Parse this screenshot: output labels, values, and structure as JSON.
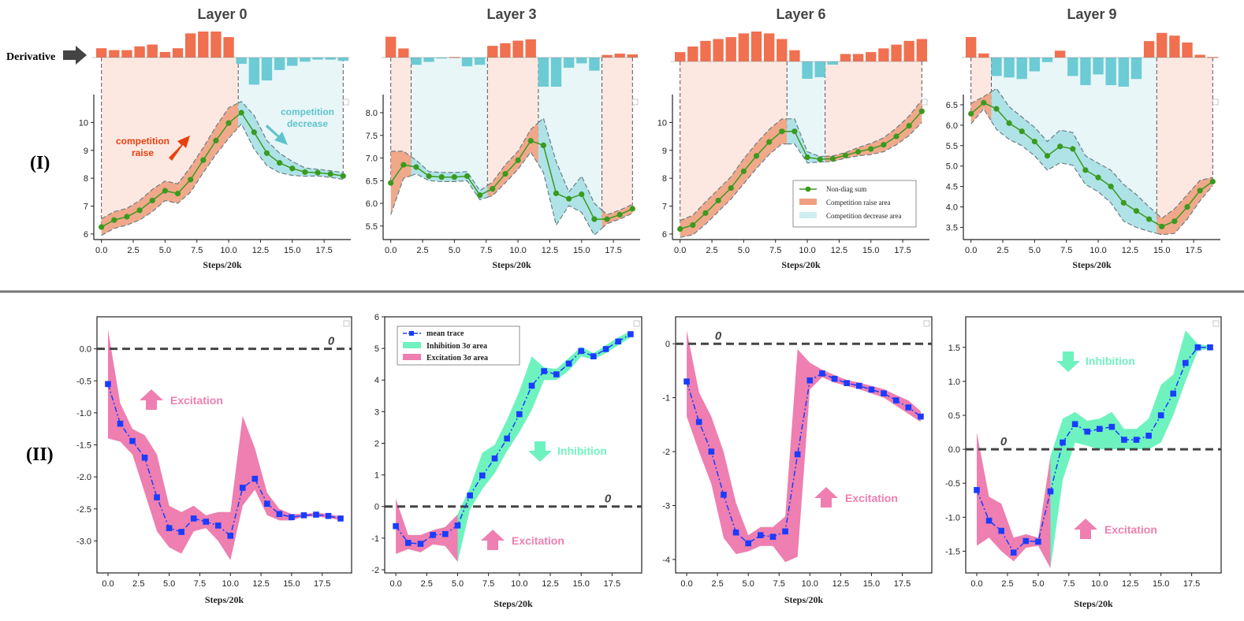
{
  "figure": {
    "row_labels": [
      "(I)",
      "(II)"
    ],
    "derivative_label": "Derivative",
    "colors": {
      "orange": "#f07050",
      "cyan": "#6ccbd4",
      "raise_fill": "#fde8e1",
      "decrease_fill": "#e8f6f8",
      "raise_band": "#f0a080",
      "decrease_band": "#a6e0e4",
      "green": "#3a9a1e",
      "blue": "#1a3cff",
      "pink": "#ee7fb0",
      "mint": "#6ef3bf",
      "dashed": "#444444"
    }
  },
  "chart_data": [
    {
      "type": "line",
      "title": "Layer 0",
      "xlabel": "Steps/20k",
      "xticks": [
        "0.0",
        "2.5",
        "5.0",
        "7.5",
        "10.0",
        "12.5",
        "15.0",
        "17.5"
      ],
      "xlim": [
        -0.6,
        19.6
      ],
      "ylim": [
        5.8,
        11.0
      ],
      "yticks": [
        "6",
        "7",
        "8",
        "9",
        "10"
      ],
      "x": [
        0,
        1,
        2,
        3,
        4,
        5,
        6,
        7,
        8,
        9,
        10,
        11,
        12,
        13,
        14,
        15,
        16,
        17,
        18,
        19
      ],
      "series": [
        {
          "name": "Non-diag sum",
          "values": [
            6.25,
            6.5,
            6.62,
            6.85,
            7.2,
            7.55,
            7.45,
            7.95,
            8.65,
            9.35,
            9.98,
            10.35,
            9.65,
            8.9,
            8.55,
            8.35,
            8.22,
            8.2,
            8.15,
            8.08
          ]
        }
      ],
      "band_halfwidth": [
        0.3,
        0.3,
        0.3,
        0.35,
        0.4,
        0.35,
        0.35,
        0.45,
        0.45,
        0.5,
        0.55,
        0.4,
        0.6,
        0.45,
        0.35,
        0.25,
        0.15,
        0.12,
        0.12,
        0.12
      ],
      "segments": [
        {
          "kind": "raise",
          "from": 0,
          "to": 10.75
        },
        {
          "kind": "decrease",
          "from": 10.75,
          "to": 19
        }
      ],
      "derivative": [
        0.25,
        0.2,
        0.2,
        0.3,
        0.35,
        0.15,
        0.25,
        0.65,
        0.7,
        0.7,
        0.55,
        -0.15,
        -0.65,
        -0.55,
        -0.3,
        -0.2,
        -0.1,
        -0.05,
        -0.05,
        -0.08
      ],
      "annotations": [
        {
          "text": "competition\nraise",
          "color": "#e8400e"
        },
        {
          "text": "competition\ndecrease",
          "color": "#5fc3cc"
        }
      ]
    },
    {
      "type": "line",
      "title": "Layer 3",
      "xlabel": "Steps/20k",
      "xticks": [
        "0.0",
        "2.5",
        "5.0",
        "7.5",
        "10.0",
        "12.5",
        "15.0",
        "17.5"
      ],
      "xlim": [
        -0.6,
        19.6
      ],
      "ylim": [
        5.2,
        8.4
      ],
      "yticks": [
        "5.5",
        "6.0",
        "6.5",
        "7.0",
        "7.5",
        "8.0"
      ],
      "x": [
        0,
        1,
        2,
        3,
        4,
        5,
        6,
        7,
        8,
        9,
        10,
        11,
        12,
        13,
        14,
        15,
        16,
        17,
        18,
        19
      ],
      "series": [
        {
          "name": "Non-diag sum",
          "values": [
            6.45,
            6.85,
            6.8,
            6.6,
            6.58,
            6.58,
            6.6,
            6.18,
            6.32,
            6.65,
            6.95,
            7.38,
            7.28,
            6.22,
            6.1,
            6.2,
            5.65,
            5.65,
            5.75,
            5.88
          ]
        }
      ],
      "band_halfwidth": [
        0.7,
        0.3,
        0.15,
        0.1,
        0.1,
        0.1,
        0.1,
        0.1,
        0.15,
        0.2,
        0.2,
        0.25,
        0.6,
        0.7,
        0.15,
        0.4,
        0.35,
        0.1,
        0.1,
        0.1
      ],
      "segments": [
        {
          "kind": "raise",
          "from": 0,
          "to": 1.6
        },
        {
          "kind": "decrease",
          "from": 1.6,
          "to": 7.6
        },
        {
          "kind": "raise",
          "from": 7.6,
          "to": 11.6
        },
        {
          "kind": "decrease",
          "from": 11.6,
          "to": 16.6
        },
        {
          "kind": "raise",
          "from": 16.6,
          "to": 19
        }
      ],
      "derivative": [
        0.8,
        0.35,
        -0.25,
        -0.15,
        -0.02,
        0.02,
        -0.3,
        -0.25,
        0.45,
        0.55,
        0.65,
        0.7,
        -1.0,
        -1.0,
        -0.35,
        -0.2,
        -0.45,
        0.1,
        0.15,
        0.12
      ]
    },
    {
      "type": "line",
      "title": "Layer 6",
      "xlabel": "Steps/20k",
      "xticks": [
        "0.0",
        "2.5",
        "5.0",
        "7.5",
        "10.0",
        "12.5",
        "15.0",
        "17.5"
      ],
      "xlim": [
        -0.6,
        19.6
      ],
      "ylim": [
        5.8,
        11.0
      ],
      "yticks": [
        "6",
        "7",
        "8",
        "9",
        "10"
      ],
      "x": [
        0,
        1,
        2,
        3,
        4,
        5,
        6,
        7,
        8,
        9,
        10,
        11,
        12,
        13,
        14,
        15,
        16,
        17,
        18,
        19
      ],
      "series": [
        {
          "name": "Non-diag sum",
          "values": [
            6.18,
            6.32,
            6.75,
            7.2,
            7.65,
            8.25,
            8.8,
            9.3,
            9.68,
            9.68,
            8.75,
            8.68,
            8.7,
            8.82,
            8.95,
            9.05,
            9.2,
            9.5,
            9.88,
            10.4
          ]
        }
      ],
      "band_halfwidth": [
        0.3,
        0.35,
        0.4,
        0.4,
        0.4,
        0.45,
        0.45,
        0.45,
        0.45,
        0.45,
        0.2,
        0.1,
        0.1,
        0.1,
        0.15,
        0.2,
        0.25,
        0.3,
        0.35,
        0.4
      ],
      "segments": [
        {
          "kind": "raise",
          "from": 0,
          "to": 8.4
        },
        {
          "kind": "decrease",
          "from": 8.4,
          "to": 11.4
        },
        {
          "kind": "raise",
          "from": 11.4,
          "to": 19
        }
      ],
      "derivative": [
        0.25,
        0.4,
        0.55,
        0.6,
        0.65,
        0.75,
        0.8,
        0.75,
        0.6,
        0.3,
        -0.55,
        -0.5,
        -0.1,
        0.2,
        0.2,
        0.25,
        0.35,
        0.45,
        0.55,
        0.6
      ],
      "legend": {
        "position": "lower-right",
        "entries": [
          "Non-diag sum",
          "Competition raise area",
          "Competition decrease area"
        ]
      }
    },
    {
      "type": "line",
      "title": "Layer 9",
      "xlabel": "Steps/20k",
      "xticks": [
        "0.0",
        "2.5",
        "5.0",
        "7.5",
        "10.0",
        "12.5",
        "15.0",
        "17.5"
      ],
      "xlim": [
        -0.6,
        19.6
      ],
      "ylim": [
        3.2,
        6.75
      ],
      "yticks": [
        "3.5",
        "4.0",
        "4.5",
        "5.0",
        "5.5",
        "6.0",
        "6.5"
      ],
      "x": [
        0,
        1,
        2,
        3,
        4,
        5,
        6,
        7,
        8,
        9,
        10,
        11,
        12,
        13,
        14,
        15,
        16,
        17,
        18,
        19
      ],
      "series": [
        {
          "name": "Non-diag sum",
          "values": [
            6.28,
            6.55,
            6.4,
            6.05,
            5.85,
            5.6,
            5.25,
            5.48,
            5.42,
            4.9,
            4.72,
            4.5,
            4.1,
            3.9,
            3.7,
            3.52,
            3.65,
            4.0,
            4.4,
            4.62
          ]
        }
      ],
      "band_halfwidth": [
        0.25,
        0.15,
        0.5,
        0.4,
        0.35,
        0.35,
        0.35,
        0.4,
        0.4,
        0.35,
        0.35,
        0.4,
        0.45,
        0.4,
        0.3,
        0.2,
        0.3,
        0.3,
        0.25,
        0.1
      ],
      "segments": [
        {
          "kind": "raise",
          "from": 0,
          "to": 1.6
        },
        {
          "kind": "decrease",
          "from": 1.6,
          "to": 14.6
        },
        {
          "kind": "raise",
          "from": 14.6,
          "to": 19
        }
      ],
      "derivative": [
        0.75,
        0.15,
        -0.6,
        -0.65,
        -0.7,
        -0.45,
        -0.15,
        0.25,
        -0.6,
        -0.9,
        -0.55,
        -0.9,
        -0.95,
        -0.7,
        0.6,
        0.9,
        0.8,
        0.55,
        0.1,
        0.02
      ]
    },
    {
      "type": "line",
      "xlabel": "Steps/20k",
      "xticks": [
        "0.0",
        "2.5",
        "5.0",
        "7.5",
        "10.0",
        "12.5",
        "15.0",
        "17.5"
      ],
      "xlim": [
        -0.9,
        19.9
      ],
      "ylim": [
        -3.5,
        0.5
      ],
      "yticks": [
        "0.0",
        "-0.5",
        "-1.0",
        "-1.5",
        "-2.0",
        "-2.5",
        "-3.0"
      ],
      "zero_label": "0",
      "x": [
        0,
        1,
        2,
        3,
        4,
        5,
        6,
        7,
        8,
        9,
        10,
        11,
        12,
        13,
        14,
        15,
        16,
        17,
        18,
        19
      ],
      "series": [
        {
          "name": "mean trace",
          "values": [
            -0.55,
            -1.17,
            -1.44,
            -1.7,
            -2.32,
            -2.8,
            -2.86,
            -2.65,
            -2.7,
            -2.76,
            -2.92,
            -2.17,
            -2.03,
            -2.42,
            -2.58,
            -2.63,
            -2.6,
            -2.59,
            -2.61,
            -2.65
          ]
        }
      ],
      "band_lower": [
        -1.4,
        -1.45,
        -1.65,
        -2.25,
        -2.85,
        -3.1,
        -3.2,
        -2.85,
        -2.8,
        -3.0,
        -3.3,
        -2.45,
        -2.2,
        -2.6,
        -2.68,
        -2.68,
        -2.62,
        -2.62,
        -2.64,
        -2.68
      ],
      "band_upper": [
        0.3,
        -0.85,
        -1.25,
        -1.35,
        -1.65,
        -2.45,
        -2.55,
        -2.45,
        -2.6,
        -2.55,
        -2.55,
        -1.05,
        -1.55,
        -2.25,
        -2.5,
        -2.58,
        -2.58,
        -2.56,
        -2.58,
        -2.62
      ],
      "band_kind": [
        "pink",
        "pink",
        "pink",
        "pink",
        "pink",
        "pink",
        "pink",
        "pink",
        "pink",
        "pink",
        "pink",
        "pink",
        "pink",
        "pink",
        "pink",
        "pink",
        "pink",
        "pink",
        "pink",
        "pink"
      ],
      "annotations": [
        {
          "text": "Excitation",
          "color": "#ee7fb0",
          "arrow": "up"
        }
      ]
    },
    {
      "type": "line",
      "xlabel": "Steps/20k",
      "xticks": [
        "0.0",
        "2.5",
        "5.0",
        "7.5",
        "10.0",
        "12.5",
        "15.0",
        "17.5"
      ],
      "xlim": [
        -0.9,
        19.9
      ],
      "ylim": [
        -2.1,
        6.0
      ],
      "yticks": [
        "6",
        "5",
        "4",
        "3",
        "2",
        "1",
        "0",
        "-1",
        "-2"
      ],
      "zero_label": "0",
      "x": [
        0,
        1,
        2,
        3,
        4,
        5,
        6,
        7,
        8,
        9,
        10,
        11,
        12,
        13,
        14,
        15,
        16,
        17,
        18,
        19
      ],
      "series": [
        {
          "name": "mean trace",
          "values": [
            -0.62,
            -1.15,
            -1.18,
            -0.9,
            -0.87,
            -0.6,
            0.35,
            0.98,
            1.52,
            2.15,
            2.92,
            3.82,
            4.28,
            4.18,
            4.52,
            4.92,
            4.75,
            4.98,
            5.22,
            5.45
          ]
        }
      ],
      "band_lower": [
        -1.5,
        -1.35,
        -1.45,
        -1.2,
        -1.25,
        -1.75,
        -0.1,
        0.55,
        1.05,
        1.75,
        2.35,
        3.05,
        4.0,
        4.0,
        4.3,
        4.75,
        4.65,
        4.85,
        5.1,
        5.35
      ],
      "band_upper": [
        0.25,
        -0.9,
        -0.9,
        -0.75,
        -0.65,
        -0.25,
        0.6,
        1.7,
        1.95,
        2.75,
        3.65,
        4.75,
        4.4,
        4.35,
        4.7,
        5.05,
        4.85,
        5.1,
        5.35,
        5.55
      ],
      "band_kind": [
        "pink",
        "pink",
        "pink",
        "pink",
        "pink",
        "pink",
        "mint",
        "mint",
        "mint",
        "mint",
        "mint",
        "mint",
        "mint",
        "mint",
        "mint",
        "mint",
        "mint",
        "mint",
        "mint",
        "mint"
      ],
      "legend": {
        "position": "upper-left",
        "entries": [
          "mean trace",
          "Inhibition 3σ area",
          "Excitation 3σ area"
        ]
      },
      "annotations": [
        {
          "text": "Inhibition",
          "color": "#6ef3bf",
          "arrow": "down"
        },
        {
          "text": "Excitation",
          "color": "#ee7fb0",
          "arrow": "up"
        }
      ]
    },
    {
      "type": "line",
      "xlabel": "Steps/20k",
      "xticks": [
        "0.0",
        "2.5",
        "5.0",
        "7.5",
        "10.0",
        "12.5",
        "15.0",
        "17.5"
      ],
      "xlim": [
        -0.9,
        19.9
      ],
      "ylim": [
        -4.25,
        0.5
      ],
      "yticks": [
        "0",
        "-1",
        "-2",
        "-3",
        "-4"
      ],
      "zero_label": "0",
      "x": [
        0,
        1,
        2,
        3,
        4,
        5,
        6,
        7,
        8,
        9,
        10,
        11,
        12,
        13,
        14,
        15,
        16,
        17,
        18,
        19
      ],
      "series": [
        {
          "name": "mean trace",
          "values": [
            -0.7,
            -1.45,
            -2.0,
            -2.8,
            -3.5,
            -3.7,
            -3.55,
            -3.58,
            -3.48,
            -2.05,
            -0.68,
            -0.55,
            -0.65,
            -0.73,
            -0.78,
            -0.85,
            -0.92,
            -1.05,
            -1.18,
            -1.35
          ]
        }
      ],
      "band_lower": [
        -1.35,
        -2.0,
        -2.6,
        -3.6,
        -3.9,
        -3.85,
        -3.75,
        -3.75,
        -4.05,
        -3.95,
        -0.85,
        -0.62,
        -0.72,
        -0.78,
        -0.84,
        -0.92,
        -1.0,
        -1.15,
        -1.3,
        -1.45
      ],
      "band_upper": [
        0.25,
        -0.9,
        -1.35,
        -2.0,
        -2.95,
        -3.55,
        -3.4,
        -3.4,
        -3.2,
        -0.1,
        -0.35,
        -0.48,
        -0.58,
        -0.67,
        -0.72,
        -0.78,
        -0.84,
        -0.95,
        -1.05,
        -1.25
      ],
      "band_kind": [
        "pink",
        "pink",
        "pink",
        "pink",
        "pink",
        "pink",
        "pink",
        "pink",
        "pink",
        "pink",
        "pink",
        "pink",
        "pink",
        "pink",
        "pink",
        "pink",
        "pink",
        "pink",
        "pink",
        "pink"
      ],
      "annotations": [
        {
          "text": "Excitation",
          "color": "#ee7fb0",
          "arrow": "up"
        }
      ]
    },
    {
      "type": "line",
      "xlabel": "Steps/20k",
      "xticks": [
        "0.0",
        "2.5",
        "5.0",
        "7.5",
        "10.0",
        "12.5",
        "15.0",
        "17.5"
      ],
      "xlim": [
        -0.9,
        19.9
      ],
      "ylim": [
        -1.82,
        1.95
      ],
      "yticks": [
        "1.5",
        "1.0",
        "0.5",
        "0.0",
        "-0.5",
        "-1.0",
        "-1.5"
      ],
      "zero_label": "0",
      "x": [
        0,
        1,
        2,
        3,
        4,
        5,
        6,
        7,
        8,
        9,
        10,
        11,
        12,
        13,
        14,
        15,
        16,
        17,
        18,
        19
      ],
      "series": [
        {
          "name": "mean trace",
          "values": [
            -0.6,
            -1.05,
            -1.2,
            -1.52,
            -1.35,
            -1.36,
            -0.62,
            0.1,
            0.37,
            0.26,
            0.3,
            0.33,
            0.14,
            0.14,
            0.2,
            0.5,
            0.82,
            1.27,
            1.5,
            1.5
          ]
        }
      ],
      "band_lower": [
        -1.42,
        -1.3,
        -1.5,
        -1.65,
        -1.45,
        -1.42,
        -1.75,
        -0.45,
        0.1,
        0.05,
        0.0,
        0.0,
        0.0,
        0.0,
        0.0,
        0.1,
        0.5,
        1.0,
        1.45,
        1.48
      ],
      "band_upper": [
        0.25,
        -0.7,
        -0.8,
        -1.3,
        -1.25,
        -1.3,
        -0.1,
        0.45,
        0.55,
        0.42,
        0.45,
        0.55,
        0.3,
        0.3,
        0.45,
        0.95,
        1.1,
        1.75,
        1.55,
        1.52
      ],
      "band_kind": [
        "pink",
        "pink",
        "pink",
        "pink",
        "pink",
        "pink",
        "pink",
        "mint",
        "mint",
        "mint",
        "mint",
        "mint",
        "mint",
        "mint",
        "mint",
        "mint",
        "mint",
        "mint",
        "mint",
        "mint"
      ],
      "annotations": [
        {
          "text": "Inhibition",
          "color": "#6ef3bf",
          "arrow": "down"
        },
        {
          "text": "Excitation",
          "color": "#ee7fb0",
          "arrow": "up"
        }
      ]
    }
  ]
}
